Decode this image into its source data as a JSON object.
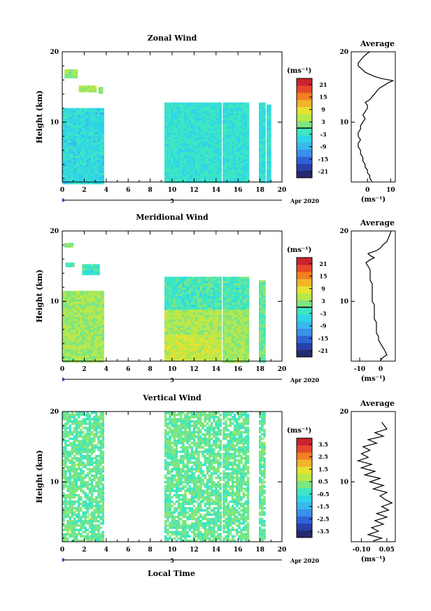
{
  "date_label": "Apr 2020",
  "day_marker": "5",
  "xlabel": "Local Time",
  "chart_data": [
    {
      "type": "heatmap",
      "title": "Zonal Wind",
      "ylabel": "Height (km)",
      "xlim": [
        0,
        20
      ],
      "ylim": [
        1.5,
        20
      ],
      "x_ticks": [
        "0",
        "2",
        "4",
        "6",
        "8",
        "10",
        "12",
        "14",
        "16",
        "18",
        "20"
      ],
      "y_ticks": [
        "10",
        "20"
      ],
      "colorbar": {
        "unit": "(ms⁻¹)",
        "min": -24,
        "max": 24,
        "ticks": [
          "21",
          "15",
          "9",
          "3",
          "-3",
          "-9",
          "-15",
          "-21"
        ],
        "contour": 0
      },
      "data_blocks": [
        {
          "x": [
            0,
            3.8
          ],
          "y": [
            1.5,
            12.0
          ],
          "v": -4.5
        },
        {
          "x": [
            9.3,
            14.4
          ],
          "y": [
            1.5,
            12.8
          ],
          "v": -3.0
        },
        {
          "x": [
            14.6,
            17.0
          ],
          "y": [
            1.5,
            12.8
          ],
          "v": -3.0
        },
        {
          "x": [
            17.9,
            18.4
          ],
          "y": [
            1.5,
            12.8
          ],
          "v": -3.5
        },
        {
          "x": [
            18.6,
            19.0
          ],
          "y": [
            1.5,
            12.5
          ],
          "v": -3.5
        },
        {
          "x": [
            0.2,
            1.4
          ],
          "y": [
            16.5,
            17.5
          ],
          "v": 2.5
        },
        {
          "x": [
            1.5,
            3.0
          ],
          "y": [
            14.3,
            15.2
          ],
          "v": 4.5
        },
        {
          "x": [
            3.3,
            3.7
          ],
          "y": [
            14.3,
            15.0
          ],
          "v": 3.5
        }
      ],
      "average": {
        "xlim": [
          -7,
          12
        ],
        "x_ticks": [
          "0",
          "10"
        ],
        "xlabel": "(ms⁻¹)",
        "profile_x": [
          2,
          1,
          1,
          0,
          0,
          -1,
          -1,
          -2,
          -2,
          -3,
          -3,
          -4,
          -4,
          -3,
          -4,
          -4,
          -3,
          -3,
          -2,
          -1,
          -2,
          -1,
          0,
          0,
          -1,
          1,
          2,
          3,
          4,
          5,
          7,
          9,
          11,
          6,
          3,
          1,
          -1,
          -2,
          -3,
          -4,
          -4,
          -3,
          -2,
          -1,
          0,
          1
        ],
        "profile_y": [
          1.6,
          2.0,
          2.4,
          2.8,
          3.2,
          3.6,
          4.0,
          4.5,
          5.0,
          5.5,
          6.0,
          6.5,
          7.0,
          7.5,
          8.0,
          8.5,
          9.0,
          9.5,
          10.0,
          10.5,
          11.0,
          11.5,
          12.0,
          12.4,
          12.8,
          13.2,
          13.6,
          14.0,
          14.4,
          14.8,
          15.2,
          15.6,
          15.9,
          16.2,
          16.5,
          16.8,
          17.1,
          17.4,
          17.7,
          18.0,
          18.4,
          18.8,
          19.2,
          19.5,
          19.8,
          20.0
        ]
      }
    },
    {
      "type": "heatmap",
      "title": "Meridional Wind",
      "ylabel": "Height (km)",
      "xlim": [
        0,
        20
      ],
      "ylim": [
        1.5,
        20
      ],
      "x_ticks": [
        "0",
        "2",
        "4",
        "6",
        "8",
        "10",
        "12",
        "14",
        "16",
        "18",
        "20"
      ],
      "y_ticks": [
        "10",
        "20"
      ],
      "colorbar": {
        "unit": "(ms⁻¹)",
        "min": -24,
        "max": 24,
        "ticks": [
          "21",
          "15",
          "9",
          "3",
          "-3",
          "-9",
          "-15",
          "-21"
        ],
        "contour": 0
      },
      "data_blocks": [
        {
          "x": [
            0,
            3.8
          ],
          "y": [
            1.5,
            11.5
          ],
          "v": 3.5
        },
        {
          "x": [
            9.3,
            14.4
          ],
          "y": [
            1.5,
            5.5
          ],
          "v": 6.0
        },
        {
          "x": [
            9.3,
            14.4
          ],
          "y": [
            5.5,
            9.0
          ],
          "v": 4.5
        },
        {
          "x": [
            9.3,
            14.4
          ],
          "y": [
            9.0,
            13.5
          ],
          "v": -1.5
        },
        {
          "x": [
            14.6,
            17.0
          ],
          "y": [
            1.5,
            9.0
          ],
          "v": 3.5
        },
        {
          "x": [
            14.6,
            17.0
          ],
          "y": [
            9.0,
            13.5
          ],
          "v": -1.5
        },
        {
          "x": [
            17.9,
            18.4
          ],
          "y": [
            1.5,
            13.0
          ],
          "v": 1.0
        },
        {
          "x": [
            0.3,
            1.0
          ],
          "y": [
            15.0,
            15.5
          ],
          "v": -1.0
        },
        {
          "x": [
            1.8,
            3.3
          ],
          "y": [
            13.8,
            15.3
          ],
          "v": -2.0
        },
        {
          "x": [
            0.2,
            1.0
          ],
          "y": [
            17.8,
            18.3
          ],
          "v": 2.0
        }
      ],
      "average": {
        "xlim": [
          -14,
          7
        ],
        "x_ticks": [
          "-10",
          "0"
        ],
        "xlabel": "(ms⁻¹)",
        "profile_x": [
          0,
          1,
          3,
          2,
          1,
          0,
          -1,
          -1,
          -2,
          -2,
          -2,
          -2,
          -3,
          -3,
          -3,
          -3,
          -3,
          -4,
          -4,
          -4,
          -4,
          -4,
          -4,
          -5,
          -5,
          -5,
          -5,
          -6,
          -7,
          -5,
          -3,
          -5,
          -6,
          -2,
          0,
          1,
          3,
          4,
          5
        ],
        "profile_y": [
          1.6,
          2.0,
          2.4,
          3.0,
          3.5,
          4.0,
          4.5,
          5.0,
          5.5,
          6.0,
          6.5,
          7.0,
          7.5,
          8.0,
          8.5,
          9.0,
          9.5,
          10.0,
          10.5,
          11.0,
          11.5,
          12.0,
          12.5,
          13.0,
          13.5,
          14.0,
          14.5,
          15.0,
          15.5,
          15.9,
          16.2,
          16.5,
          16.8,
          17.2,
          17.6,
          18.0,
          18.5,
          19.2,
          20.0
        ]
      }
    },
    {
      "type": "heatmap",
      "title": "Vertical Wind",
      "ylabel": "Height (km)",
      "xlim": [
        0,
        20
      ],
      "ylim": [
        1.5,
        20
      ],
      "x_ticks": [
        "0",
        "2",
        "4",
        "6",
        "8",
        "10",
        "12",
        "14",
        "16",
        "18",
        "20"
      ],
      "y_ticks": [
        "10",
        "20"
      ],
      "colorbar": {
        "unit": "(ms⁻¹)",
        "min": -4,
        "max": 4,
        "ticks": [
          "3.5",
          "2.5",
          "1.5",
          "0.5",
          "-0.5",
          "-1.5",
          "-2.5",
          "-3.5"
        ]
      },
      "data_blocks": [
        {
          "x": [
            0,
            3.8
          ],
          "y": [
            1.5,
            20.0
          ],
          "v": 0.1
        },
        {
          "x": [
            9.3,
            14.4
          ],
          "y": [
            1.5,
            20.0
          ],
          "v": 0.1
        },
        {
          "x": [
            14.6,
            17.0
          ],
          "y": [
            1.5,
            20.0
          ],
          "v": 0.1
        },
        {
          "x": [
            17.9,
            18.4
          ],
          "y": [
            1.5,
            20.0
          ],
          "v": 0.1
        }
      ],
      "average": {
        "xlim": [
          -0.16,
          0.1
        ],
        "x_ticks": [
          "-0.10",
          "0.05"
        ],
        "xlabel": "(ms⁻¹)",
        "profile_x": [
          -0.03,
          0.02,
          -0.06,
          0.0,
          -0.04,
          0.03,
          -0.02,
          0.05,
          -0.01,
          0.06,
          0.02,
          0.08,
          0.04,
          0.01,
          0.05,
          -0.03,
          0.03,
          -0.05,
          0.01,
          -0.08,
          -0.02,
          -0.1,
          -0.04,
          -0.12,
          -0.06,
          -0.1,
          -0.05,
          -0.09,
          -0.01,
          -0.06,
          0.03,
          -0.02,
          0.05,
          0.02
        ],
        "profile_y": [
          1.6,
          2.0,
          2.5,
          3.0,
          3.5,
          4.0,
          4.5,
          5.0,
          5.5,
          6.0,
          6.5,
          7.0,
          7.5,
          8.0,
          8.5,
          9.0,
          9.5,
          10.0,
          10.5,
          11.0,
          11.5,
          12.0,
          12.5,
          13.0,
          13.5,
          14.0,
          14.5,
          15.0,
          15.5,
          16.0,
          16.5,
          17.0,
          17.5,
          18.5
        ]
      }
    }
  ]
}
